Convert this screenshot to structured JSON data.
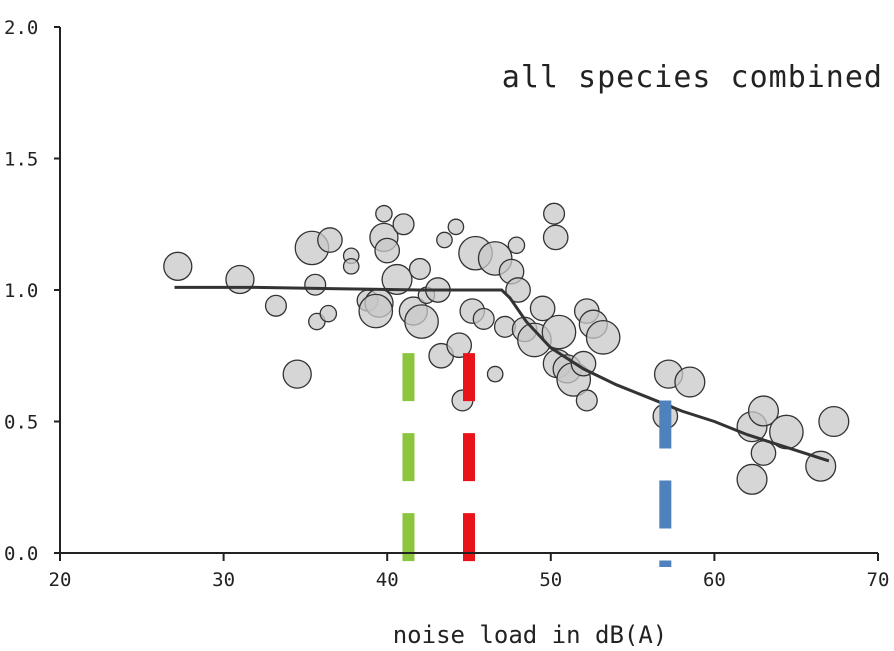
{
  "chart_data": {
    "type": "scatter",
    "title": "all species combined",
    "xlabel": "noise load in dB(A)",
    "ylabel": "",
    "xlim": [
      20,
      70
    ],
    "ylim": [
      0.0,
      2.0
    ],
    "x_ticks": [
      "20",
      "30",
      "40",
      "50",
      "60",
      "70"
    ],
    "y_ticks": [
      "0.0",
      "0.5",
      "1.0",
      "1.5",
      "2.0"
    ],
    "grid": false,
    "points": [
      {
        "x": 27.2,
        "y": 1.09,
        "r": 1.0
      },
      {
        "x": 31.0,
        "y": 1.04,
        "r": 1.0
      },
      {
        "x": 33.2,
        "y": 0.94,
        "r": 0.6
      },
      {
        "x": 34.5,
        "y": 0.68,
        "r": 1.0
      },
      {
        "x": 35.4,
        "y": 1.16,
        "r": 1.3
      },
      {
        "x": 35.6,
        "y": 1.02,
        "r": 0.6
      },
      {
        "x": 35.7,
        "y": 0.88,
        "r": 0.35
      },
      {
        "x": 36.4,
        "y": 0.91,
        "r": 0.35
      },
      {
        "x": 36.5,
        "y": 1.19,
        "r": 0.8
      },
      {
        "x": 37.8,
        "y": 1.13,
        "r": 0.3
      },
      {
        "x": 37.8,
        "y": 1.09,
        "r": 0.3
      },
      {
        "x": 38.8,
        "y": 0.96,
        "r": 0.6
      },
      {
        "x": 39.5,
        "y": 0.95,
        "r": 1.0
      },
      {
        "x": 39.3,
        "y": 0.92,
        "r": 1.3
      },
      {
        "x": 39.8,
        "y": 1.2,
        "r": 1.0
      },
      {
        "x": 40.0,
        "y": 1.15,
        "r": 0.8
      },
      {
        "x": 39.8,
        "y": 1.29,
        "r": 0.35
      },
      {
        "x": 41.0,
        "y": 1.25,
        "r": 0.6
      },
      {
        "x": 40.6,
        "y": 1.04,
        "r": 1.1
      },
      {
        "x": 41.6,
        "y": 0.92,
        "r": 1.0
      },
      {
        "x": 42.1,
        "y": 0.88,
        "r": 1.3
      },
      {
        "x": 42.0,
        "y": 1.08,
        "r": 0.6
      },
      {
        "x": 42.4,
        "y": 0.98,
        "r": 0.35
      },
      {
        "x": 43.1,
        "y": 1.0,
        "r": 0.8
      },
      {
        "x": 43.3,
        "y": 0.75,
        "r": 0.8
      },
      {
        "x": 43.5,
        "y": 1.19,
        "r": 0.3
      },
      {
        "x": 44.4,
        "y": 0.79,
        "r": 0.8
      },
      {
        "x": 44.2,
        "y": 1.24,
        "r": 0.3
      },
      {
        "x": 44.6,
        "y": 0.58,
        "r": 0.6
      },
      {
        "x": 45.2,
        "y": 0.92,
        "r": 0.8
      },
      {
        "x": 45.4,
        "y": 1.14,
        "r": 1.3
      },
      {
        "x": 45.9,
        "y": 0.89,
        "r": 0.6
      },
      {
        "x": 46.6,
        "y": 1.12,
        "r": 1.3
      },
      {
        "x": 46.6,
        "y": 0.68,
        "r": 0.3
      },
      {
        "x": 47.2,
        "y": 0.86,
        "r": 0.6
      },
      {
        "x": 47.6,
        "y": 1.07,
        "r": 0.8
      },
      {
        "x": 47.9,
        "y": 1.17,
        "r": 0.35
      },
      {
        "x": 48.0,
        "y": 1.0,
        "r": 0.8
      },
      {
        "x": 48.4,
        "y": 0.85,
        "r": 0.8
      },
      {
        "x": 49.0,
        "y": 0.81,
        "r": 1.3
      },
      {
        "x": 49.5,
        "y": 0.93,
        "r": 0.8
      },
      {
        "x": 50.2,
        "y": 1.29,
        "r": 0.6
      },
      {
        "x": 50.3,
        "y": 1.2,
        "r": 0.8
      },
      {
        "x": 50.5,
        "y": 0.84,
        "r": 1.3
      },
      {
        "x": 50.4,
        "y": 0.72,
        "r": 1.0
      },
      {
        "x": 51.0,
        "y": 0.7,
        "r": 1.0
      },
      {
        "x": 51.4,
        "y": 0.66,
        "r": 1.3
      },
      {
        "x": 52.2,
        "y": 0.92,
        "r": 0.8
      },
      {
        "x": 52.0,
        "y": 0.72,
        "r": 0.8
      },
      {
        "x": 52.2,
        "y": 0.58,
        "r": 0.6
      },
      {
        "x": 52.6,
        "y": 0.87,
        "r": 1.0
      },
      {
        "x": 53.2,
        "y": 0.82,
        "r": 1.3
      },
      {
        "x": 57.2,
        "y": 0.68,
        "r": 1.0
      },
      {
        "x": 58.5,
        "y": 0.65,
        "r": 1.1
      },
      {
        "x": 57.0,
        "y": 0.52,
        "r": 0.8
      },
      {
        "x": 62.3,
        "y": 0.28,
        "r": 1.1
      },
      {
        "x": 62.3,
        "y": 0.48,
        "r": 1.1
      },
      {
        "x": 63.0,
        "y": 0.54,
        "r": 1.1
      },
      {
        "x": 63.0,
        "y": 0.38,
        "r": 0.8
      },
      {
        "x": 64.4,
        "y": 0.46,
        "r": 1.3
      },
      {
        "x": 66.5,
        "y": 0.33,
        "r": 1.1
      },
      {
        "x": 67.3,
        "y": 0.5,
        "r": 1.1
      }
    ],
    "fit_line": {
      "x": [
        27,
        32,
        37,
        42,
        47,
        47.5,
        48.5,
        50,
        52,
        54,
        56,
        58,
        60,
        62,
        64,
        66,
        67
      ],
      "y": [
        1.01,
        1.01,
        1.005,
        1.0,
        1.0,
        0.97,
        0.88,
        0.78,
        0.7,
        0.64,
        0.59,
        0.54,
        0.5,
        0.45,
        0.41,
        0.37,
        0.35
      ]
    },
    "reference_lines": [
      {
        "x": 41.3,
        "y_range": [
          0.0,
          0.76
        ],
        "color": "#8cc63f",
        "style": "dashed"
      },
      {
        "x": 45.0,
        "y_range": [
          0.0,
          0.76
        ],
        "color": "#e8141a",
        "style": "dashed"
      },
      {
        "x": 57.0,
        "y_range": [
          0.0,
          0.58
        ],
        "color": "#4f81bd",
        "style": "dashed"
      }
    ]
  }
}
